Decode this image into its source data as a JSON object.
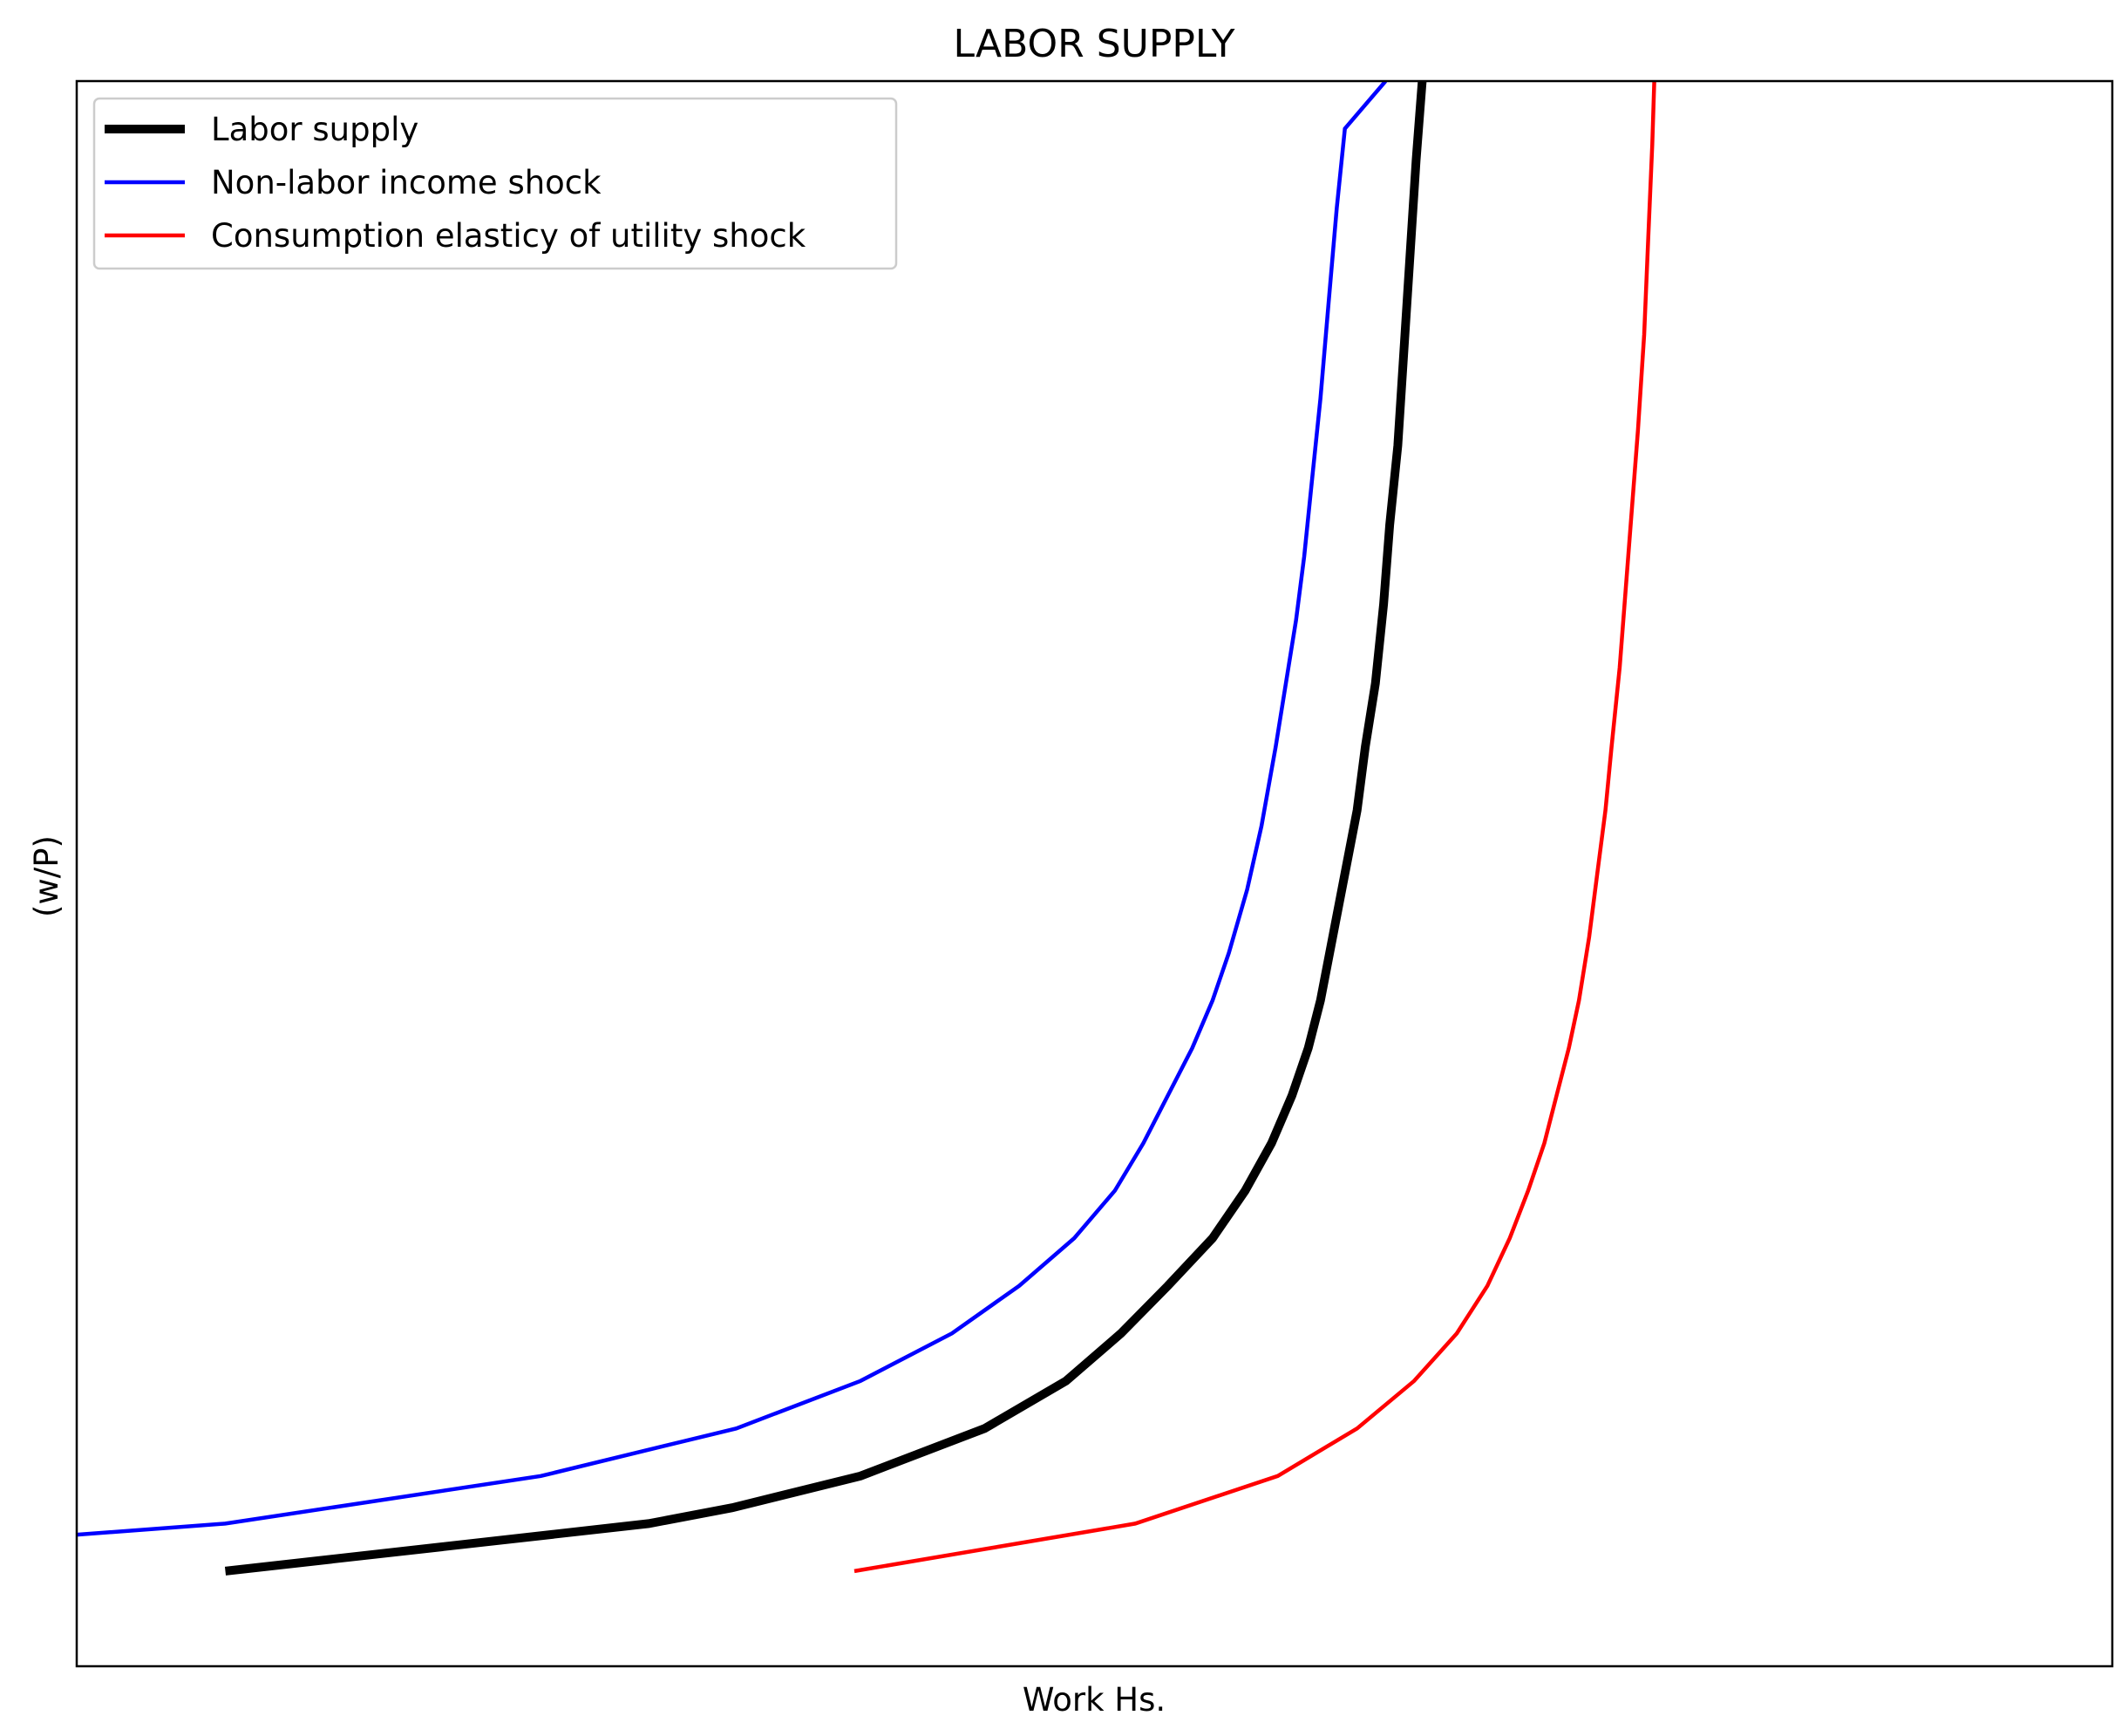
{
  "chart_data": {
    "type": "line",
    "title": "LABOR SUPPLY",
    "xlabel": "Work Hs.",
    "ylabel": "(w/P)",
    "xlim": [
      0,
      10
    ],
    "ylim": [
      0,
      10
    ],
    "x_ticks_shown": false,
    "y_ticks_shown": false,
    "grid": false,
    "legend": {
      "placement": "top-left"
    },
    "series": [
      {
        "name": "Labor supply",
        "color": "#000000",
        "emphasis": "thick",
        "points": [
          [
            0.73,
            0.6
          ],
          [
            2.81,
            0.9
          ],
          [
            3.22,
            1.0
          ],
          [
            3.85,
            1.2
          ],
          [
            4.46,
            1.5
          ],
          [
            4.86,
            1.8
          ],
          [
            5.13,
            2.1
          ],
          [
            5.36,
            2.4
          ],
          [
            5.58,
            2.7
          ],
          [
            5.74,
            3.0
          ],
          [
            5.87,
            3.3
          ],
          [
            5.97,
            3.6
          ],
          [
            6.05,
            3.9
          ],
          [
            6.11,
            4.2
          ],
          [
            6.17,
            4.6
          ],
          [
            6.23,
            5.0
          ],
          [
            6.29,
            5.4
          ],
          [
            6.33,
            5.8
          ],
          [
            6.38,
            6.2
          ],
          [
            6.42,
            6.7
          ],
          [
            6.45,
            7.2
          ],
          [
            6.49,
            7.7
          ],
          [
            6.52,
            8.3
          ],
          [
            6.55,
            8.9
          ],
          [
            6.58,
            9.5
          ],
          [
            6.61,
            10.0
          ]
        ]
      },
      {
        "name": "Non-labor income shock",
        "color": "#0000ff",
        "emphasis": "normal",
        "points": [
          [
            0.0,
            0.83
          ],
          [
            0.73,
            0.9
          ],
          [
            2.28,
            1.2
          ],
          [
            3.24,
            1.5
          ],
          [
            3.85,
            1.8
          ],
          [
            4.3,
            2.1
          ],
          [
            4.63,
            2.4
          ],
          [
            4.9,
            2.7
          ],
          [
            5.1,
            3.0
          ],
          [
            5.24,
            3.3
          ],
          [
            5.36,
            3.6
          ],
          [
            5.48,
            3.9
          ],
          [
            5.58,
            4.2
          ],
          [
            5.66,
            4.5
          ],
          [
            5.75,
            4.9
          ],
          [
            5.82,
            5.3
          ],
          [
            5.89,
            5.8
          ],
          [
            5.94,
            6.2
          ],
          [
            5.99,
            6.6
          ],
          [
            6.03,
            7.0
          ],
          [
            6.07,
            7.5
          ],
          [
            6.11,
            8.0
          ],
          [
            6.15,
            8.6
          ],
          [
            6.19,
            9.2
          ],
          [
            6.23,
            9.7
          ],
          [
            6.43,
            10.0
          ]
        ]
      },
      {
        "name": "Consumption elasticy of utility shock",
        "color": "#ff0000",
        "emphasis": "normal",
        "points": [
          [
            3.82,
            0.6
          ],
          [
            5.2,
            0.9
          ],
          [
            5.9,
            1.2
          ],
          [
            6.29,
            1.5
          ],
          [
            6.57,
            1.8
          ],
          [
            6.78,
            2.1
          ],
          [
            6.93,
            2.4
          ],
          [
            7.04,
            2.7
          ],
          [
            7.13,
            3.0
          ],
          [
            7.21,
            3.3
          ],
          [
            7.27,
            3.6
          ],
          [
            7.33,
            3.9
          ],
          [
            7.38,
            4.2
          ],
          [
            7.43,
            4.6
          ],
          [
            7.47,
            5.0
          ],
          [
            7.51,
            5.4
          ],
          [
            7.54,
            5.8
          ],
          [
            7.58,
            6.3
          ],
          [
            7.61,
            6.8
          ],
          [
            7.64,
            7.3
          ],
          [
            7.67,
            7.8
          ],
          [
            7.7,
            8.4
          ],
          [
            7.72,
            9.0
          ],
          [
            7.74,
            9.6
          ],
          [
            7.75,
            10.0
          ]
        ]
      }
    ]
  }
}
